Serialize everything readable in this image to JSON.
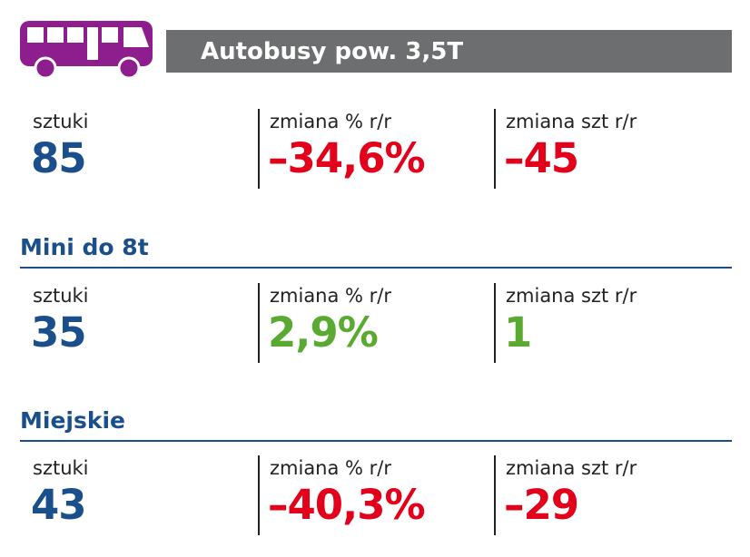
{
  "header": {
    "title": "Autobusy pow. 3,5T"
  },
  "summary": {
    "stats": [
      {
        "label": "sztuki",
        "value": "85"
      },
      {
        "label": "zmiana % r/r",
        "value": "–34,6%"
      },
      {
        "label": "zmiana szt r/r",
        "value": "–45"
      }
    ]
  },
  "sections": [
    {
      "title": "Mini do 8t",
      "stats": [
        {
          "label": "sztuki",
          "value": "35"
        },
        {
          "label": "zmiana % r/r",
          "value": "2,9%"
        },
        {
          "label": "zmiana szt r/r",
          "value": "1"
        }
      ]
    },
    {
      "title": "Miejskie",
      "stats": [
        {
          "label": "sztuki",
          "value": "43"
        },
        {
          "label": "zmiana % r/r",
          "value": "–40,3%"
        },
        {
          "label": "zmiana szt r/r",
          "value": "–29"
        }
      ]
    }
  ]
}
